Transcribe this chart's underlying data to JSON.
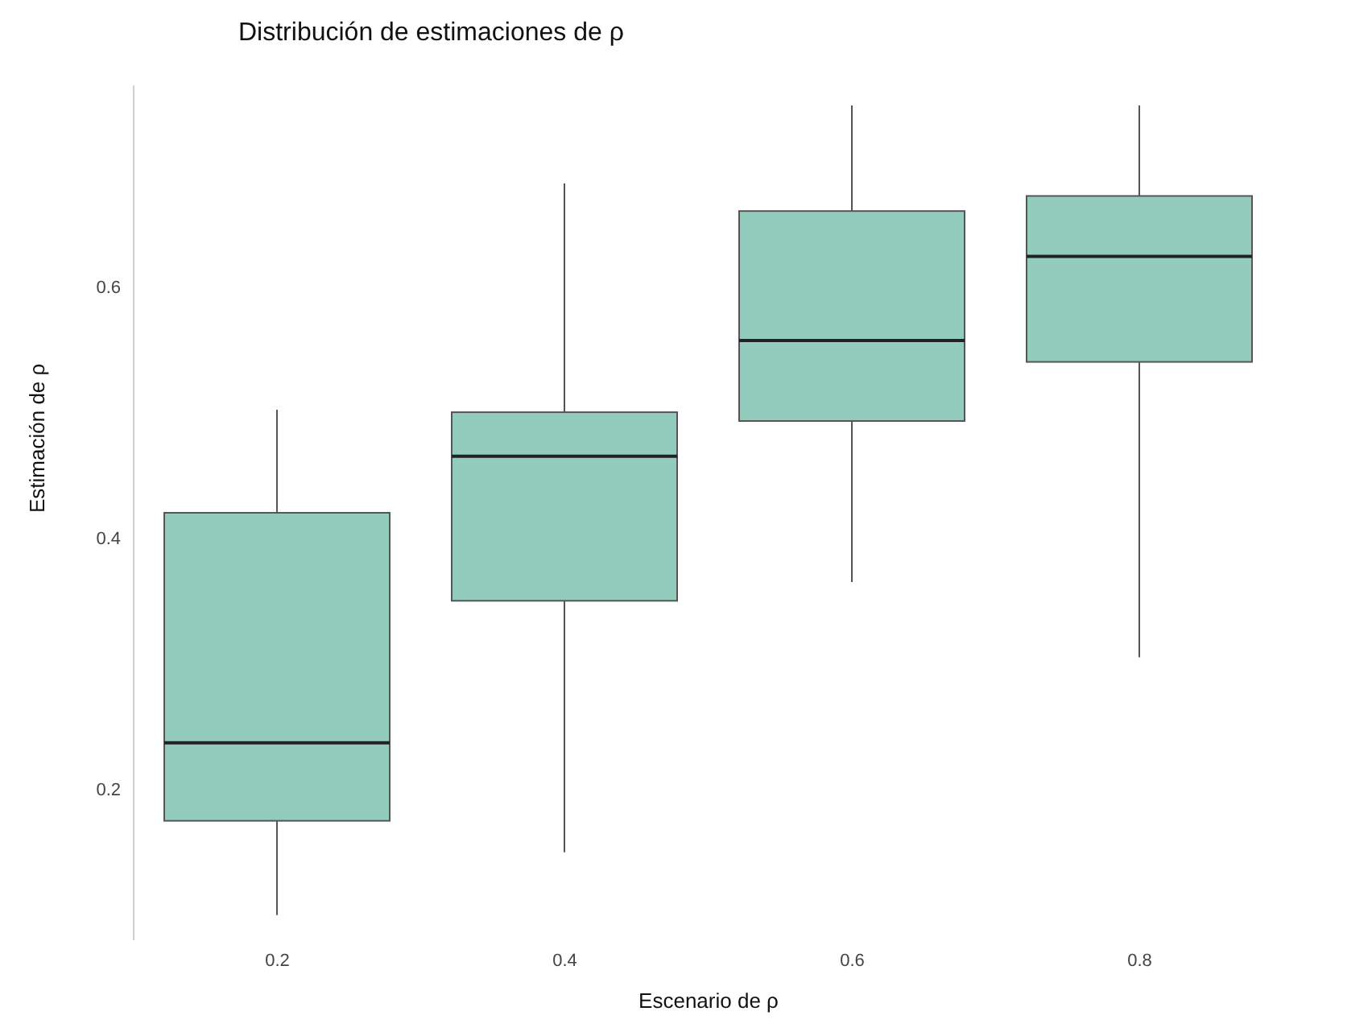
{
  "chart_data": {
    "type": "box",
    "title": "Distribución de estimaciones de ρ",
    "xlabel": "Escenario de ρ",
    "ylabel": "Estimación de ρ",
    "categories": [
      "0.2",
      "0.4",
      "0.6",
      "0.8"
    ],
    "color": "#93cbbd",
    "boxes": [
      {
        "low": 0.1,
        "q1": 0.175,
        "median": 0.237,
        "q3": 0.42,
        "high": 0.502
      },
      {
        "low": 0.15,
        "q1": 0.35,
        "median": 0.465,
        "q3": 0.5,
        "high": 0.682
      },
      {
        "low": 0.365,
        "q1": 0.493,
        "median": 0.557,
        "q3": 0.66,
        "high": 0.744
      },
      {
        "low": 0.305,
        "q1": 0.54,
        "median": 0.624,
        "q3": 0.672,
        "high": 0.744
      }
    ],
    "ylim": [
      0.08,
      0.76
    ],
    "yticks": [
      0.2,
      0.4,
      0.6
    ],
    "grid": false
  }
}
